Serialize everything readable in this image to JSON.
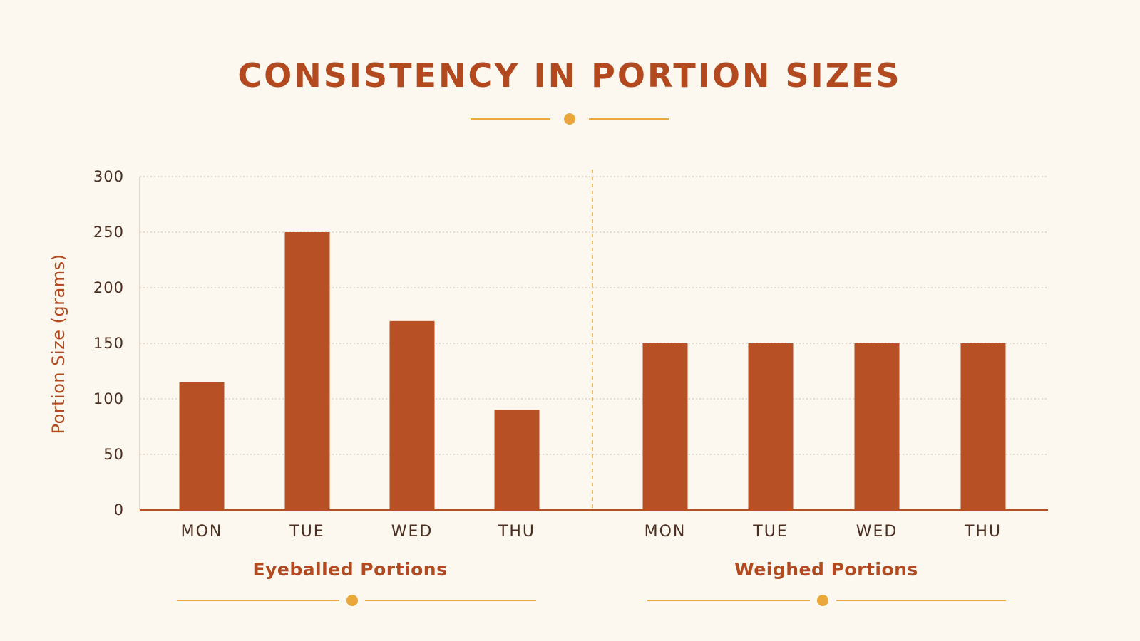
{
  "title": "CONSISTENCY IN PORTION SIZES",
  "colors": {
    "background": "#fcf7ef",
    "title": "#b2491f",
    "bar": "#b85025",
    "accent": "#e9a73c",
    "axis_text": "#4a2e1f",
    "group_label": "#b2491f"
  },
  "chart_data": {
    "type": "bar",
    "ylabel": "Portion Size (grams)",
    "ylim": [
      0,
      300
    ],
    "yticks": [
      0,
      50,
      100,
      150,
      200,
      250,
      300
    ],
    "grid": true,
    "groups": [
      {
        "name": "Eyeballed Portions",
        "categories": [
          "MON",
          "TUE",
          "WED",
          "THU"
        ],
        "values": [
          115,
          250,
          170,
          90
        ]
      },
      {
        "name": "Weighed Portions",
        "categories": [
          "MON",
          "TUE",
          "WED",
          "THU"
        ],
        "values": [
          150,
          150,
          150,
          150
        ]
      }
    ]
  }
}
